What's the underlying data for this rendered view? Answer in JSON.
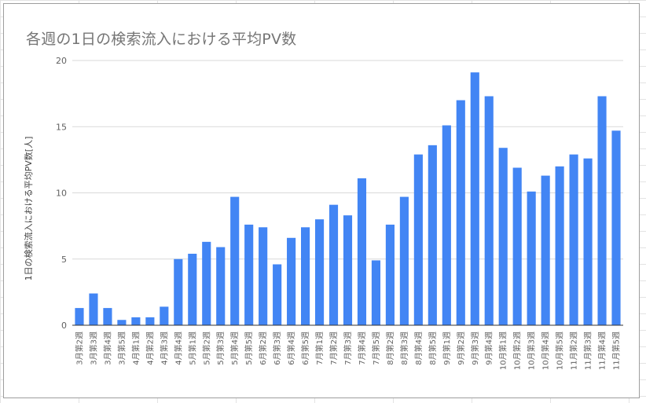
{
  "chart_data": {
    "type": "bar",
    "title": "各週の1日の検索流入における平均PV数",
    "xlabel": "",
    "ylabel": "1日の検索流入における平均PV数[人]",
    "ylim": [
      0,
      20
    ],
    "yticks": [
      "0",
      "5",
      "10",
      "15",
      "20"
    ],
    "grid": true,
    "legend": "none",
    "bar_color": "#4285f4",
    "categories": [
      "3月第2週",
      "3月第3週",
      "3月第4週",
      "3月第5週",
      "4月第1週",
      "4月第2週",
      "4月第3週",
      "4月第4週",
      "5月第1週",
      "5月第2週",
      "5月第3週",
      "5月第4週",
      "5月第5週",
      "6月第2週",
      "6月第3週",
      "6月第4週",
      "6月第5週",
      "7月第1週",
      "7月第2週",
      "7月第3週",
      "7月第4週",
      "7月第5週",
      "8月第2週",
      "8月第3週",
      "8月第4週",
      "8月第5週",
      "9月第1週",
      "9月第2週",
      "9月第3週",
      "9月第4週",
      "10月第1週",
      "10月第2週",
      "10月第3週",
      "10月第4週",
      "10月第5週",
      "11月第2週",
      "11月第3週",
      "11月第4週",
      "11月第5週"
    ],
    "values": [
      1.3,
      2.4,
      1.3,
      0.4,
      0.6,
      0.6,
      1.4,
      5.0,
      5.4,
      6.3,
      5.9,
      9.7,
      7.6,
      7.4,
      4.6,
      6.6,
      7.4,
      8.0,
      9.1,
      8.3,
      11.1,
      4.9,
      7.6,
      9.7,
      12.9,
      13.6,
      15.1,
      17.0,
      19.1,
      17.3,
      13.4,
      11.9,
      10.1,
      11.3,
      12.0,
      12.9,
      12.6,
      17.3,
      14.7
    ]
  }
}
